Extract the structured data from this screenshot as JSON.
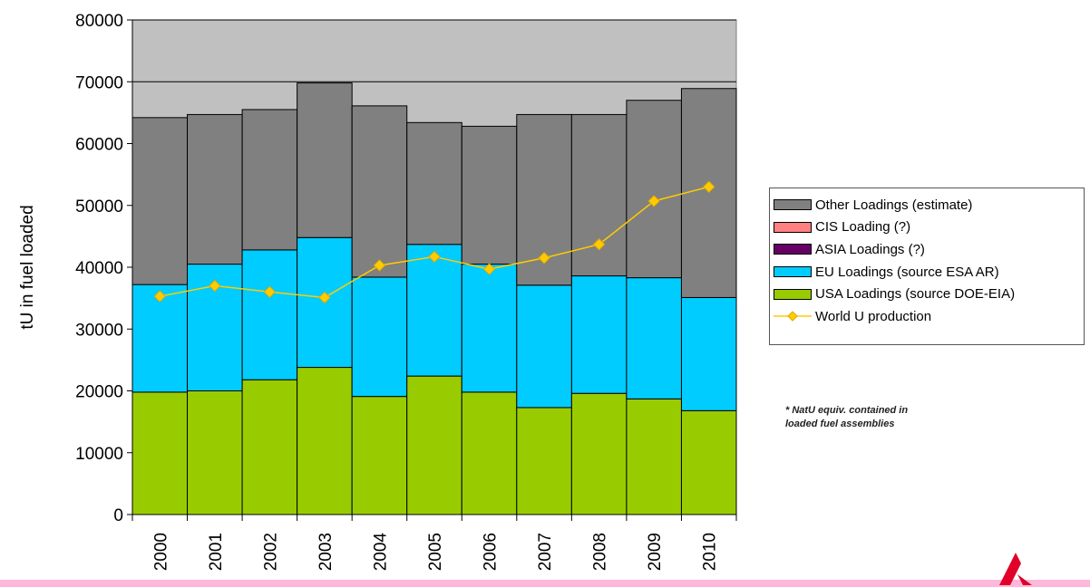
{
  "chart_data": {
    "type": "bar",
    "stacked": true,
    "ylabel": "tU in fuel loaded",
    "ylim": [
      0,
      80000
    ],
    "yticks": [
      0,
      10000,
      20000,
      30000,
      40000,
      50000,
      60000,
      70000,
      80000
    ],
    "categories": [
      "2000",
      "2001",
      "2002",
      "2003",
      "2004",
      "2005",
      "2006",
      "2007",
      "2008",
      "2009",
      "2010"
    ],
    "series": [
      {
        "name": "USA Loadings (source DOE-EIA)",
        "kind": "bar",
        "color": "#99cc00",
        "values": [
          19800,
          20000,
          21800,
          23800,
          19100,
          22400,
          19800,
          17300,
          19600,
          18700,
          16800
        ]
      },
      {
        "name": "EU Loadings (source ESA AR)",
        "kind": "bar",
        "color": "#00ccff",
        "values": [
          17400,
          20500,
          21000,
          21000,
          19300,
          21300,
          20700,
          19800,
          19000,
          19600,
          18300
        ]
      },
      {
        "name": "ASIA Loadings (?)",
        "kind": "bar",
        "color": "#660066",
        "values": [
          0,
          0,
          0,
          0,
          0,
          0,
          0,
          0,
          0,
          0,
          0
        ]
      },
      {
        "name": "CIS Loading (?)",
        "kind": "bar",
        "color": "#ff8080",
        "values": [
          0,
          0,
          0,
          0,
          0,
          0,
          0,
          0,
          0,
          0,
          0
        ]
      },
      {
        "name": "Other Loadings (estimate)",
        "kind": "bar",
        "color": "#808080",
        "values": [
          27000,
          24200,
          22700,
          25000,
          27700,
          19700,
          22300,
          27600,
          26100,
          28700,
          33800
        ]
      },
      {
        "name": "World U production",
        "kind": "line",
        "color": "#ffcc00",
        "values": [
          35300,
          37000,
          36000,
          35100,
          40300,
          41700,
          39700,
          41500,
          43700,
          50700,
          53000
        ]
      }
    ],
    "legend": {
      "position": "right",
      "items": [
        {
          "label": "Other Loadings (estimate)",
          "color": "#808080",
          "kind": "bar"
        },
        {
          "label": "CIS Loading (?)",
          "color": "#ff8080",
          "kind": "bar"
        },
        {
          "label": "ASIA Loadings (?)",
          "color": "#660066",
          "kind": "bar"
        },
        {
          "label": "EU Loadings (source ESA AR)",
          "color": "#00ccff",
          "kind": "bar"
        },
        {
          "label": "USA Loadings (source DOE-EIA)",
          "color": "#99cc00",
          "kind": "bar"
        },
        {
          "label": "World U production",
          "color": "#ffcc00",
          "kind": "line"
        }
      ]
    },
    "grid": true,
    "plot_background": "#c0c0c0"
  },
  "footnote": {
    "line1": "* NatU equiv. contained in",
    "line2": "loaded fuel assemblies"
  },
  "brand_color": "#e0002a"
}
